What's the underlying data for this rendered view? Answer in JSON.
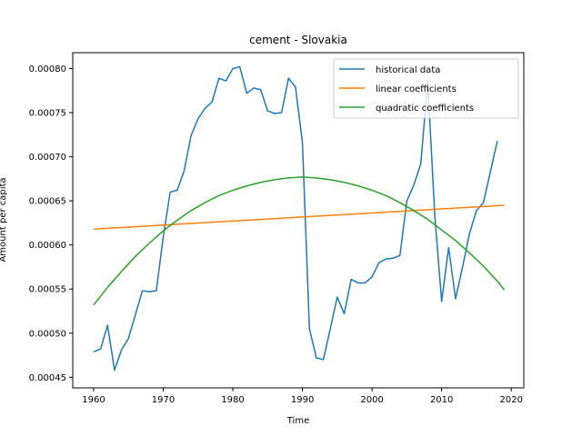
{
  "chart_data": {
    "type": "line",
    "title": "cement - Slovakia",
    "xlabel": "Time",
    "ylabel": "Amount per capita",
    "xlim": [
      1957,
      2021.8
    ],
    "ylim": [
      0.000438,
      0.000818
    ],
    "xticks": [
      1960,
      1970,
      1980,
      1990,
      2000,
      2010,
      2020
    ],
    "yticks": [
      0.00045,
      0.0005,
      0.00055,
      0.0006,
      0.00065,
      0.0007,
      0.00075,
      0.0008
    ],
    "ytick_labels": [
      "0.00045",
      "0.00050",
      "0.00055",
      "0.00060",
      "0.00065",
      "0.00070",
      "0.00075",
      "0.00080"
    ],
    "grid": false,
    "legend": "top-right",
    "series": [
      {
        "name": "historical data",
        "color": "#1f77b4",
        "x": [
          1960,
          1961,
          1962,
          1963,
          1964,
          1965,
          1966,
          1967,
          1968,
          1969,
          1970,
          1971,
          1972,
          1973,
          1974,
          1975,
          1976,
          1977,
          1978,
          1979,
          1980,
          1981,
          1982,
          1983,
          1984,
          1985,
          1986,
          1987,
          1988,
          1989,
          1990,
          1991,
          1992,
          1993,
          1994,
          1995,
          1996,
          1997,
          1998,
          1999,
          2000,
          2001,
          2002,
          2003,
          2004,
          2005,
          2006,
          2007,
          2008,
          2009,
          2010,
          2011,
          2012,
          2013,
          2014,
          2015,
          2016,
          2017,
          2018
        ],
        "y": [
          0.000479,
          0.000482,
          0.000509,
          0.000458,
          0.000481,
          0.000494,
          0.000521,
          0.000548,
          0.000547,
          0.000548,
          0.000609,
          0.00066,
          0.000662,
          0.000684,
          0.000724,
          0.000743,
          0.000755,
          0.000762,
          0.000789,
          0.000786,
          0.0008,
          0.000802,
          0.000772,
          0.000778,
          0.000776,
          0.000752,
          0.000749,
          0.00075,
          0.000789,
          0.000779,
          0.000716,
          0.000505,
          0.000472,
          0.00047,
          0.000505,
          0.000541,
          0.000522,
          0.000561,
          0.000557,
          0.000557,
          0.000564,
          0.00058,
          0.000584,
          0.000585,
          0.000588,
          0.00065,
          0.000668,
          0.000692,
          0.000786,
          0.000635,
          0.000536,
          0.000597,
          0.000539,
          0.000575,
          0.000613,
          0.000639,
          0.000648,
          0.000683,
          0.000718
        ]
      },
      {
        "name": "linear coefficients",
        "color": "#ff7f0e",
        "x": [
          1960,
          2019
        ],
        "y": [
          0.000618,
          0.000645
        ]
      },
      {
        "name": "quadratic coefficients",
        "color": "#2ca02c",
        "x": [
          1960,
          1962,
          1964,
          1966,
          1968,
          1970,
          1972,
          1974,
          1976,
          1978,
          1980,
          1982,
          1984,
          1986,
          1988,
          1990,
          1992,
          1994,
          1996,
          1998,
          2000,
          2002,
          2004,
          2006,
          2008,
          2010,
          2012,
          2014,
          2016,
          2018,
          2019
        ],
        "y": [
          0.000532,
          0.000552,
          0.00057,
          0.000587,
          0.000602,
          0.000616,
          0.000628,
          0.000639,
          0.000648,
          0.000656,
          0.000662,
          0.000667,
          0.000671,
          0.000674,
          0.000676,
          0.000677,
          0.000676,
          0.000674,
          0.000671,
          0.000667,
          0.000662,
          0.000656,
          0.000648,
          0.000639,
          0.000629,
          0.000617,
          0.000605,
          0.000591,
          0.000576,
          0.000559,
          0.000549
        ]
      }
    ]
  }
}
